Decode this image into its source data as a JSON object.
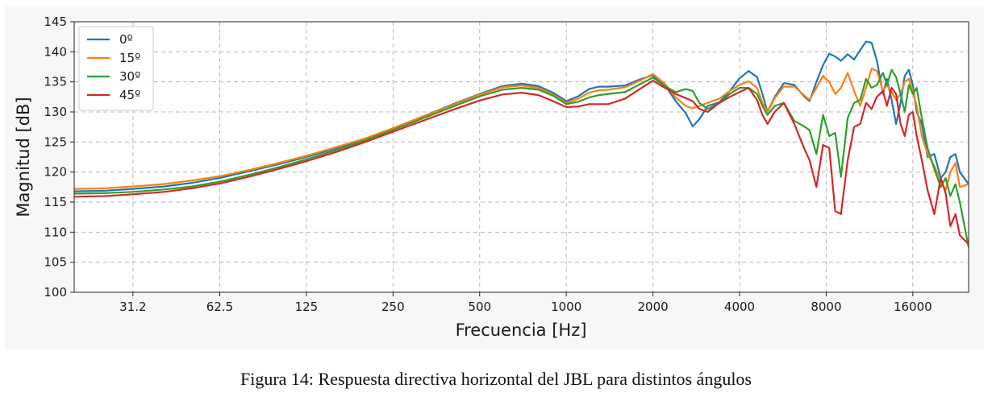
{
  "caption": "Figura 14: Respuesta directiva horizontal del JBL para distintos ángulos",
  "chart_data": {
    "type": "line",
    "xlabel": "Frecuencia [Hz]",
    "ylabel": "Magnitud [dB]",
    "x_scale": "log2",
    "xlim": [
      19.5,
      25000
    ],
    "ylim": [
      100,
      145
    ],
    "x_ticks": [
      31.2,
      62.5,
      125,
      250,
      500,
      1000,
      2000,
      4000,
      8000,
      16000
    ],
    "x_tick_labels": [
      "31.2",
      "62.5",
      "125",
      "250",
      "500",
      "1000",
      "2000",
      "4000",
      "8000",
      "16000"
    ],
    "y_ticks": [
      100,
      105,
      110,
      115,
      120,
      125,
      130,
      135,
      140,
      145
    ],
    "grid": true,
    "legend_position": "top-left",
    "series": [
      {
        "name": "0º",
        "color": "#1f77b4",
        "points": [
          [
            19.5,
            116.8
          ],
          [
            25,
            116.9
          ],
          [
            31.2,
            117.2
          ],
          [
            40,
            117.6
          ],
          [
            50,
            118.2
          ],
          [
            62.5,
            119.0
          ],
          [
            80,
            120.2
          ],
          [
            100,
            121.3
          ],
          [
            125,
            122.5
          ],
          [
            160,
            124.0
          ],
          [
            200,
            125.5
          ],
          [
            250,
            127.2
          ],
          [
            320,
            129.3
          ],
          [
            400,
            131.2
          ],
          [
            500,
            133.0
          ],
          [
            600,
            134.3
          ],
          [
            700,
            134.7
          ],
          [
            800,
            134.3
          ],
          [
            900,
            133.2
          ],
          [
            1000,
            131.8
          ],
          [
            1100,
            132.6
          ],
          [
            1200,
            133.8
          ],
          [
            1300,
            134.2
          ],
          [
            1400,
            134.2
          ],
          [
            1600,
            134.4
          ],
          [
            1800,
            135.4
          ],
          [
            2000,
            136.1
          ],
          [
            2200,
            134.5
          ],
          [
            2400,
            131.8
          ],
          [
            2600,
            129.8
          ],
          [
            2750,
            127.6
          ],
          [
            2900,
            128.8
          ],
          [
            3100,
            131.0
          ],
          [
            3400,
            131.6
          ],
          [
            3700,
            133.5
          ],
          [
            4000,
            135.6
          ],
          [
            4300,
            136.8
          ],
          [
            4600,
            135.8
          ],
          [
            4800,
            133.0
          ],
          [
            5000,
            130.0
          ],
          [
            5300,
            132.5
          ],
          [
            5700,
            134.8
          ],
          [
            6200,
            134.5
          ],
          [
            6700,
            132.6
          ],
          [
            7000,
            131.8
          ],
          [
            7400,
            135.0
          ],
          [
            7800,
            137.8
          ],
          [
            8200,
            139.7
          ],
          [
            8600,
            139.2
          ],
          [
            9000,
            138.5
          ],
          [
            9500,
            139.6
          ],
          [
            10000,
            138.7
          ],
          [
            10500,
            140.3
          ],
          [
            11000,
            141.7
          ],
          [
            11500,
            141.5
          ],
          [
            12000,
            138.5
          ],
          [
            12600,
            133.0
          ],
          [
            13000,
            135.5
          ],
          [
            13500,
            132.0
          ],
          [
            14000,
            128.0
          ],
          [
            14500,
            131.5
          ],
          [
            15000,
            136.0
          ],
          [
            15500,
            137.0
          ],
          [
            16000,
            134.5
          ],
          [
            16500,
            130.0
          ],
          [
            17200,
            128.0
          ],
          [
            18000,
            122.5
          ],
          [
            19000,
            123.0
          ],
          [
            20000,
            119.0
          ],
          [
            20800,
            120.0
          ],
          [
            21600,
            122.5
          ],
          [
            22500,
            123.0
          ],
          [
            23300,
            120.0
          ],
          [
            25000,
            118.0
          ]
        ]
      },
      {
        "name": "15º",
        "color": "#ff7f0e",
        "points": [
          [
            19.5,
            117.2
          ],
          [
            25,
            117.3
          ],
          [
            31.2,
            117.6
          ],
          [
            40,
            118.0
          ],
          [
            50,
            118.6
          ],
          [
            62.5,
            119.3
          ],
          [
            80,
            120.4
          ],
          [
            100,
            121.5
          ],
          [
            125,
            122.7
          ],
          [
            160,
            124.2
          ],
          [
            200,
            125.6
          ],
          [
            250,
            127.3
          ],
          [
            320,
            129.3
          ],
          [
            400,
            131.1
          ],
          [
            500,
            132.9
          ],
          [
            600,
            134.1
          ],
          [
            700,
            134.4
          ],
          [
            800,
            134.0
          ],
          [
            900,
            132.9
          ],
          [
            1000,
            131.5
          ],
          [
            1100,
            132.2
          ],
          [
            1200,
            133.2
          ],
          [
            1300,
            133.6
          ],
          [
            1400,
            133.7
          ],
          [
            1600,
            134.1
          ],
          [
            1800,
            135.2
          ],
          [
            2000,
            136.3
          ],
          [
            2200,
            134.7
          ],
          [
            2400,
            132.4
          ],
          [
            2600,
            131.0
          ],
          [
            2750,
            130.6
          ],
          [
            2900,
            131.0
          ],
          [
            3100,
            131.5
          ],
          [
            3400,
            132.2
          ],
          [
            3700,
            133.5
          ],
          [
            4000,
            134.5
          ],
          [
            4300,
            135.1
          ],
          [
            4600,
            134.0
          ],
          [
            4800,
            131.5
          ],
          [
            5000,
            130.0
          ],
          [
            5300,
            132.3
          ],
          [
            5700,
            134.2
          ],
          [
            6200,
            134.2
          ],
          [
            6700,
            132.8
          ],
          [
            7000,
            132.0
          ],
          [
            7400,
            134.0
          ],
          [
            7800,
            136.0
          ],
          [
            8200,
            135.0
          ],
          [
            8600,
            133.0
          ],
          [
            9000,
            134.0
          ],
          [
            9500,
            136.5
          ],
          [
            10000,
            133.5
          ],
          [
            10500,
            131.0
          ],
          [
            11000,
            134.0
          ],
          [
            11500,
            137.2
          ],
          [
            12000,
            136.8
          ],
          [
            12600,
            133.5
          ],
          [
            13000,
            134.5
          ],
          [
            13500,
            133.3
          ],
          [
            14000,
            132.0
          ],
          [
            14500,
            133.0
          ],
          [
            15000,
            135.0
          ],
          [
            15500,
            135.5
          ],
          [
            16000,
            133.5
          ],
          [
            16500,
            131.0
          ],
          [
            17200,
            126.0
          ],
          [
            18000,
            123.0
          ],
          [
            19000,
            121.0
          ],
          [
            20000,
            118.5
          ],
          [
            20800,
            117.0
          ],
          [
            21600,
            120.0
          ],
          [
            22500,
            121.5
          ],
          [
            23300,
            117.5
          ],
          [
            25000,
            118.0
          ]
        ]
      },
      {
        "name": "30º",
        "color": "#2ca02c",
        "points": [
          [
            19.5,
            116.4
          ],
          [
            25,
            116.5
          ],
          [
            31.2,
            116.7
          ],
          [
            40,
            117.1
          ],
          [
            50,
            117.6
          ],
          [
            62.5,
            118.4
          ],
          [
            80,
            119.6
          ],
          [
            100,
            120.8
          ],
          [
            125,
            122.1
          ],
          [
            160,
            123.7
          ],
          [
            200,
            125.3
          ],
          [
            250,
            127.0
          ],
          [
            320,
            129.0
          ],
          [
            400,
            130.8
          ],
          [
            500,
            132.6
          ],
          [
            600,
            133.7
          ],
          [
            700,
            134.0
          ],
          [
            800,
            133.7
          ],
          [
            900,
            132.7
          ],
          [
            1000,
            131.3
          ],
          [
            1100,
            131.7
          ],
          [
            1200,
            132.4
          ],
          [
            1300,
            132.8
          ],
          [
            1400,
            133.0
          ],
          [
            1600,
            133.3
          ],
          [
            1800,
            134.6
          ],
          [
            2000,
            135.7
          ],
          [
            2200,
            134.3
          ],
          [
            2400,
            133.3
          ],
          [
            2600,
            133.8
          ],
          [
            2750,
            133.5
          ],
          [
            2900,
            131.5
          ],
          [
            3100,
            130.5
          ],
          [
            3400,
            131.5
          ],
          [
            3700,
            133.0
          ],
          [
            4000,
            134.0
          ],
          [
            4300,
            134.0
          ],
          [
            4600,
            133.0
          ],
          [
            4800,
            131.0
          ],
          [
            5000,
            129.5
          ],
          [
            5300,
            131.0
          ],
          [
            5700,
            131.5
          ],
          [
            6200,
            128.5
          ],
          [
            6700,
            127.6
          ],
          [
            7000,
            127.0
          ],
          [
            7400,
            123.0
          ],
          [
            7800,
            129.5
          ],
          [
            8200,
            126.0
          ],
          [
            8600,
            126.5
          ],
          [
            9000,
            119.2
          ],
          [
            9500,
            129.0
          ],
          [
            10000,
            131.5
          ],
          [
            10500,
            132.0
          ],
          [
            11000,
            135.5
          ],
          [
            11500,
            134.0
          ],
          [
            12000,
            134.5
          ],
          [
            12600,
            136.5
          ],
          [
            13000,
            134.5
          ],
          [
            13500,
            137.0
          ],
          [
            14000,
            135.8
          ],
          [
            14500,
            133.0
          ],
          [
            15000,
            130.0
          ],
          [
            15500,
            134.5
          ],
          [
            16000,
            133.0
          ],
          [
            16500,
            134.0
          ],
          [
            17200,
            129.0
          ],
          [
            18000,
            124.0
          ],
          [
            19000,
            120.5
          ],
          [
            20000,
            117.5
          ],
          [
            20800,
            119.0
          ],
          [
            21600,
            116.0
          ],
          [
            22500,
            118.0
          ],
          [
            23300,
            115.0
          ],
          [
            25000,
            107.5
          ]
        ]
      },
      {
        "name": "45º",
        "color": "#d62728",
        "points": [
          [
            19.5,
            115.9
          ],
          [
            25,
            116.0
          ],
          [
            31.2,
            116.3
          ],
          [
            40,
            116.7
          ],
          [
            50,
            117.3
          ],
          [
            62.5,
            118.1
          ],
          [
            80,
            119.3
          ],
          [
            100,
            120.5
          ],
          [
            125,
            121.8
          ],
          [
            160,
            123.4
          ],
          [
            200,
            125.0
          ],
          [
            250,
            126.7
          ],
          [
            320,
            128.6
          ],
          [
            400,
            130.3
          ],
          [
            500,
            131.9
          ],
          [
            600,
            132.9
          ],
          [
            700,
            133.2
          ],
          [
            800,
            132.8
          ],
          [
            900,
            131.8
          ],
          [
            1000,
            130.8
          ],
          [
            1100,
            130.9
          ],
          [
            1200,
            131.3
          ],
          [
            1300,
            131.3
          ],
          [
            1400,
            131.3
          ],
          [
            1600,
            132.2
          ],
          [
            1800,
            133.8
          ],
          [
            2000,
            135.2
          ],
          [
            2200,
            134.0
          ],
          [
            2400,
            133.0
          ],
          [
            2600,
            132.3
          ],
          [
            2750,
            131.8
          ],
          [
            2900,
            130.5
          ],
          [
            3100,
            130.0
          ],
          [
            3400,
            131.5
          ],
          [
            3700,
            132.5
          ],
          [
            4000,
            133.3
          ],
          [
            4300,
            134.0
          ],
          [
            4600,
            132.0
          ],
          [
            4800,
            129.5
          ],
          [
            5000,
            128.0
          ],
          [
            5300,
            130.0
          ],
          [
            5700,
            131.5
          ],
          [
            6200,
            128.0
          ],
          [
            6700,
            124.0
          ],
          [
            7000,
            122.0
          ],
          [
            7400,
            117.5
          ],
          [
            7800,
            124.5
          ],
          [
            8200,
            124.0
          ],
          [
            8600,
            113.5
          ],
          [
            9000,
            113.0
          ],
          [
            9500,
            122.0
          ],
          [
            10000,
            127.5
          ],
          [
            10500,
            128.0
          ],
          [
            11000,
            131.5
          ],
          [
            11500,
            130.5
          ],
          [
            12000,
            132.5
          ],
          [
            12600,
            133.5
          ],
          [
            13000,
            131.0
          ],
          [
            13500,
            134.0
          ],
          [
            14000,
            133.0
          ],
          [
            14500,
            128.0
          ],
          [
            15000,
            126.0
          ],
          [
            15500,
            129.5
          ],
          [
            16000,
            130.0
          ],
          [
            16500,
            126.0
          ],
          [
            17200,
            122.0
          ],
          [
            18000,
            117.0
          ],
          [
            19000,
            113.0
          ],
          [
            20000,
            119.0
          ],
          [
            20800,
            116.5
          ],
          [
            21600,
            111.0
          ],
          [
            22500,
            113.0
          ],
          [
            23300,
            109.5
          ],
          [
            25000,
            108.0
          ]
        ]
      }
    ]
  }
}
